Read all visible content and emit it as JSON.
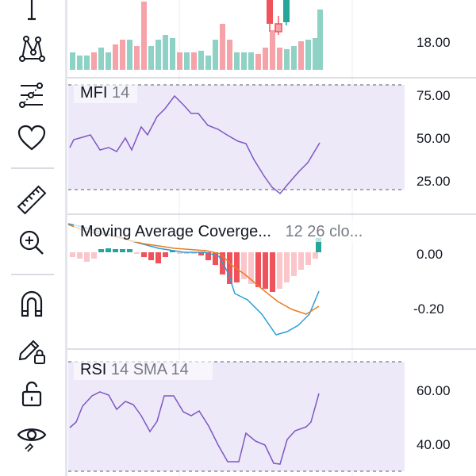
{
  "toolbar": {
    "tools": [
      {
        "name": "vertical-line-icon"
      },
      {
        "name": "pattern-icon"
      },
      {
        "name": "fib-retracement-icon"
      },
      {
        "name": "favorites-heart-icon"
      },
      {
        "name": "ruler-icon"
      },
      {
        "name": "zoom-in-icon"
      },
      {
        "name": "magnet-icon"
      },
      {
        "name": "lock-drawings-icon"
      },
      {
        "name": "unlock-icon"
      },
      {
        "name": "hide-drawings-eye-icon"
      }
    ]
  },
  "price_pane": {
    "axis_label": "18.00"
  },
  "mfi": {
    "name": "MFI",
    "params": "14",
    "axis_labels": [
      "75.00",
      "50.00",
      "25.00"
    ]
  },
  "macd": {
    "name": "Moving Average Coverge...",
    "params": "12 26 clo...",
    "axis_labels": [
      "0.00",
      "-0.20"
    ]
  },
  "rsi": {
    "name": "RSI",
    "params": "14 SMA 14",
    "axis_labels": [
      "60.00",
      "40.00"
    ]
  },
  "colors": {
    "up": "#8ed1c5",
    "down": "#f5a3a8",
    "band_fill": "#ede9f8",
    "indicator_line": "#7e57c2",
    "macd_line": "#2a9fd6",
    "signal_line": "#e67e22",
    "hist_strong_down": "#f0525b",
    "hist_weak_down": "#fbc5ca",
    "hist_up": "#26a69a"
  }
}
